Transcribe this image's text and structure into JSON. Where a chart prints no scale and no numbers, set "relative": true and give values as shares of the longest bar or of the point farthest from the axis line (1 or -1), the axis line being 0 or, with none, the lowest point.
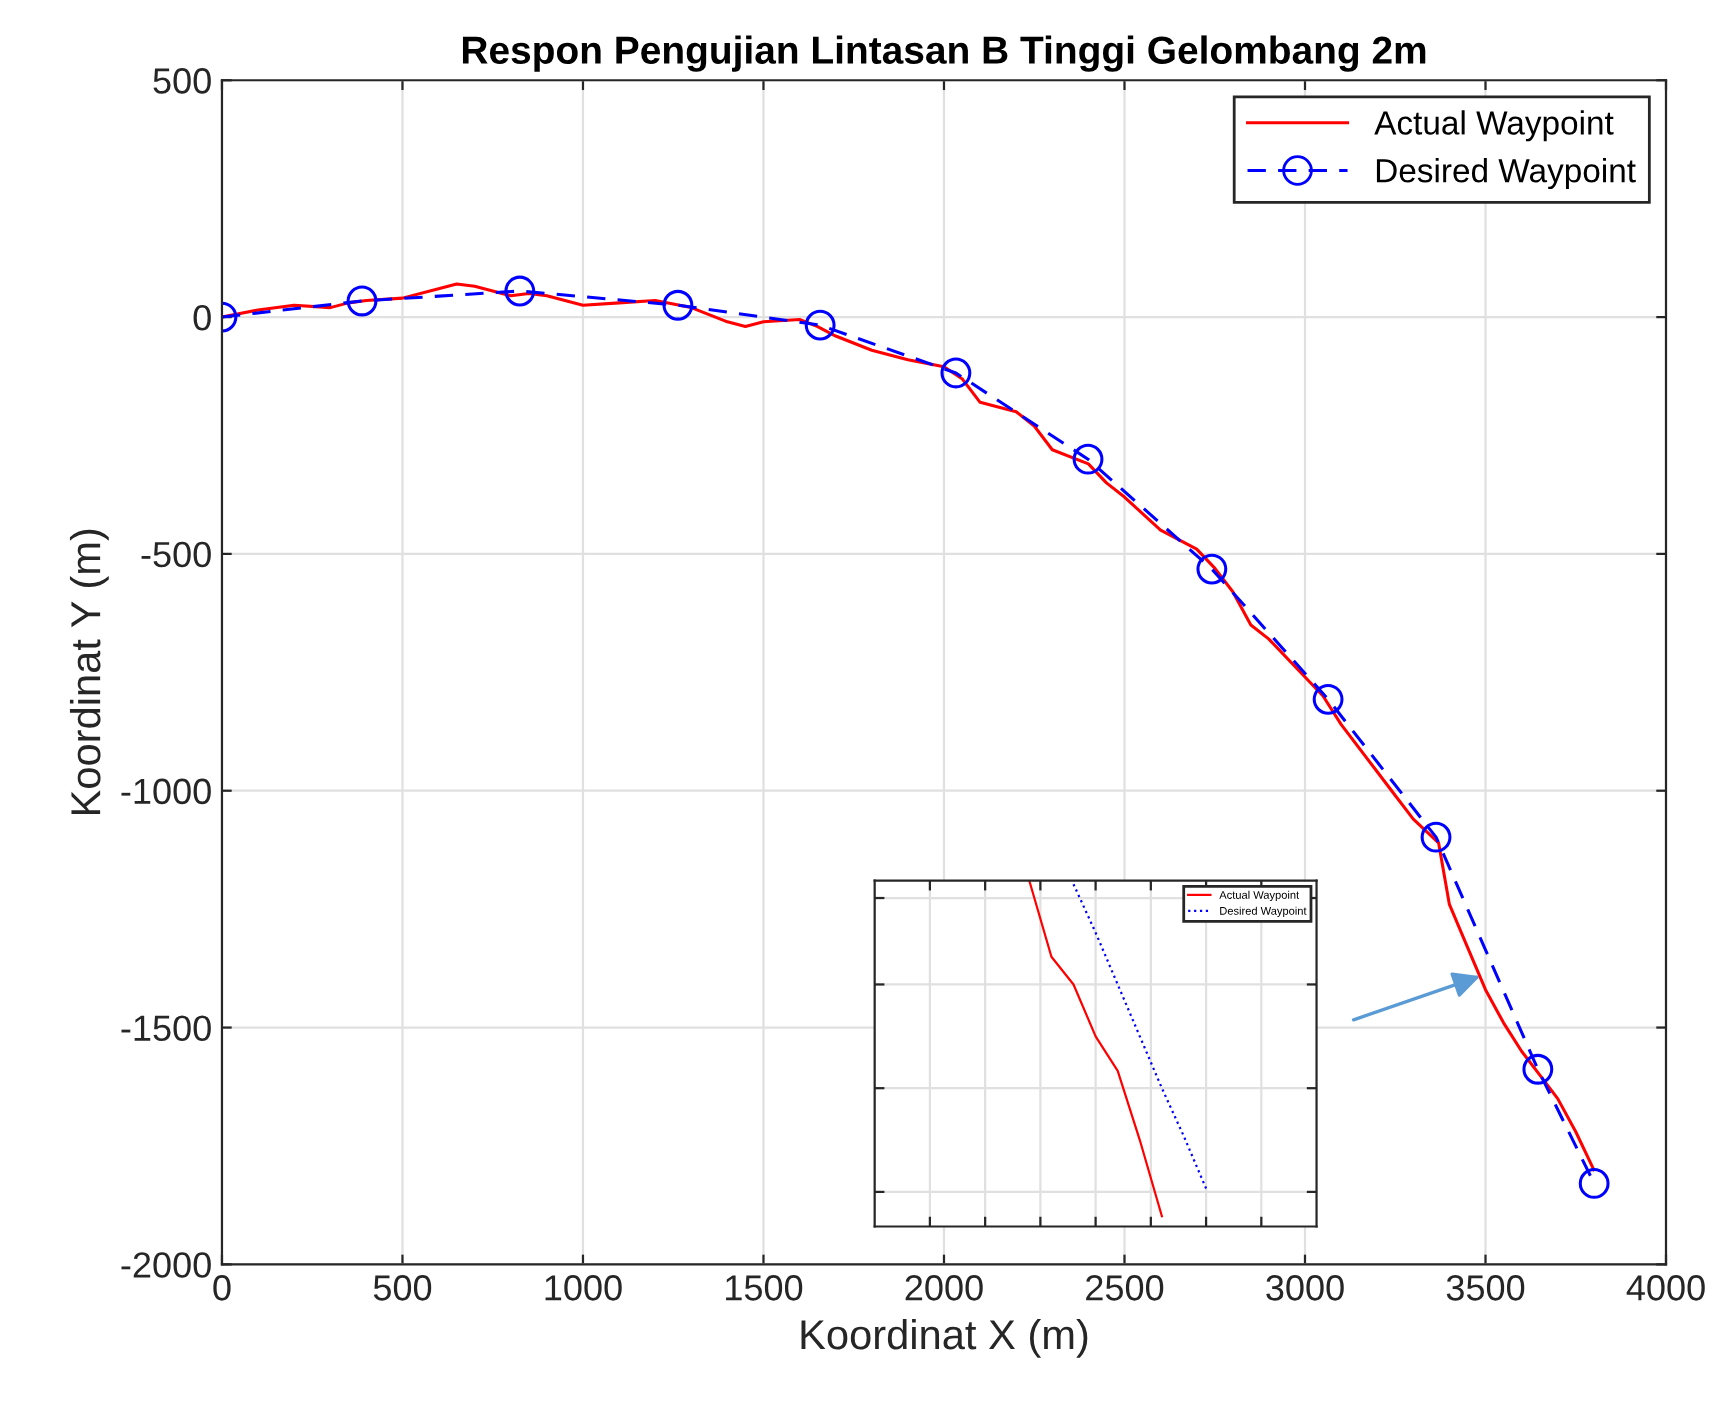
{
  "chart_data": [
    {
      "type": "line",
      "title": "Respon Pengujian Lintasan B Tinggi Gelombang 2m",
      "xlabel": "Koordinat X (m)",
      "ylabel": "Koordinat Y (m)",
      "xlim": [
        0,
        4000
      ],
      "xticks": [
        0,
        500,
        1000,
        1500,
        2000,
        2500,
        3000,
        3500,
        4000
      ],
      "ylim": [
        -2000,
        500
      ],
      "yticks": [
        -2000,
        -1500,
        -1000,
        -500,
        0,
        500
      ],
      "grid": true,
      "legend": "top right",
      "series": [
        {
          "name": "Actual Waypoint",
          "color": "#ff0000",
          "line_style": "solid",
          "marker": "none",
          "x": [
            0,
            100,
            200,
            300,
            350,
            400,
            500,
            600,
            650,
            700,
            750,
            800,
            850,
            900,
            950,
            1000,
            1100,
            1200,
            1300,
            1400,
            1450,
            1500,
            1600,
            1650,
            1700,
            1800,
            1900,
            2000,
            2050,
            2100,
            2200,
            2250,
            2300,
            2400,
            2450,
            2500,
            2600,
            2700,
            2750,
            2800,
            2850,
            2900,
            3000,
            3050,
            3100,
            3200,
            3250,
            3300,
            3370,
            3400,
            3450,
            3500,
            3550,
            3600,
            3650,
            3700,
            3750,
            3800
          ],
          "values": [
            0,
            15,
            25,
            20,
            30,
            35,
            40,
            60,
            70,
            65,
            55,
            45,
            50,
            45,
            35,
            25,
            30,
            35,
            20,
            -10,
            -20,
            -10,
            -5,
            -20,
            -40,
            -70,
            -90,
            -105,
            -130,
            -180,
            -200,
            -230,
            -280,
            -310,
            -350,
            -380,
            -450,
            -490,
            -530,
            -580,
            -650,
            -680,
            -760,
            -800,
            -860,
            -960,
            -1010,
            -1060,
            -1110,
            -1240,
            -1330,
            -1420,
            -1490,
            -1550,
            -1600,
            -1650,
            -1720,
            -1800
          ]
        },
        {
          "name": "Desired Waypoint",
          "color": "#0000ff",
          "line_style": "dashed",
          "marker": "circle",
          "x": [
            0,
            388,
            825,
            1263,
            1657,
            2033,
            2399,
            2742,
            3064,
            3363,
            3645,
            3801
          ],
          "values": [
            0,
            34,
            55,
            25,
            -17,
            -118,
            -300,
            -532,
            -807,
            -1098,
            -1588,
            -1829
          ]
        }
      ]
    },
    {
      "type": "line",
      "relative": true,
      "tick_labels": false,
      "grid": true,
      "legend": "top right",
      "categories": [
        null,
        null,
        null,
        null,
        null,
        null,
        null,
        null,
        null,
        null,
        null,
        null,
        null,
        null,
        null,
        null,
        null,
        null,
        null,
        null,
        null
      ],
      "series": [
        {
          "name": "Actual Waypoint",
          "color": "#ff0000",
          "line_style": "solid",
          "marker": "none",
          "values": [
            null,
            null,
            null,
            null,
            null,
            null,
            null,
            1,
            0.78,
            0.7,
            0.55,
            0.45,
            0.25,
            0.03,
            null,
            null,
            null,
            null,
            null,
            null,
            null
          ]
        },
        {
          "name": "Desired Waypoint",
          "color": "#0000ff",
          "line_style": "dotted",
          "marker": "none",
          "values": [
            null,
            null,
            null,
            null,
            null,
            null,
            null,
            null,
            null,
            0.99,
            0.85,
            0.7,
            0.55,
            0.4,
            0.26,
            0.11,
            null,
            null,
            null,
            null,
            null
          ]
        }
      ]
    }
  ]
}
